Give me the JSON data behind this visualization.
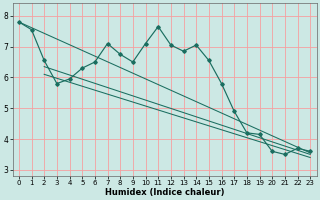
{
  "xlabel": "Humidex (Indice chaleur)",
  "bg_color": "#cce8e4",
  "grid_color": "#f5a0a0",
  "line_color": "#1a6e60",
  "xlim": [
    -0.5,
    23.5
  ],
  "ylim": [
    2.8,
    8.4
  ],
  "xticks": [
    0,
    1,
    2,
    3,
    4,
    5,
    6,
    7,
    8,
    9,
    10,
    11,
    12,
    13,
    14,
    15,
    16,
    17,
    18,
    19,
    20,
    21,
    22,
    23
  ],
  "yticks": [
    3,
    4,
    5,
    6,
    7,
    8
  ],
  "data_x": [
    0,
    1,
    2,
    3,
    4,
    5,
    6,
    7,
    8,
    9,
    10,
    11,
    12,
    13,
    14,
    15,
    16,
    17,
    18,
    19,
    20,
    21,
    22,
    23
  ],
  "data_y": [
    7.8,
    7.55,
    6.55,
    5.8,
    5.95,
    6.3,
    6.5,
    7.1,
    6.75,
    6.5,
    7.1,
    7.65,
    7.05,
    6.85,
    7.05,
    6.55,
    5.8,
    4.9,
    4.2,
    4.15,
    3.6,
    3.5,
    3.7,
    3.6
  ],
  "trend1_x": [
    0,
    23
  ],
  "trend1_y": [
    7.8,
    3.55
  ],
  "trend2_x": [
    2,
    23
  ],
  "trend2_y": [
    6.35,
    3.5
  ],
  "trend3_x": [
    2,
    23
  ],
  "trend3_y": [
    6.1,
    3.4
  ],
  "xlabel_fontsize": 6.0,
  "tick_fontsize": 5.0
}
